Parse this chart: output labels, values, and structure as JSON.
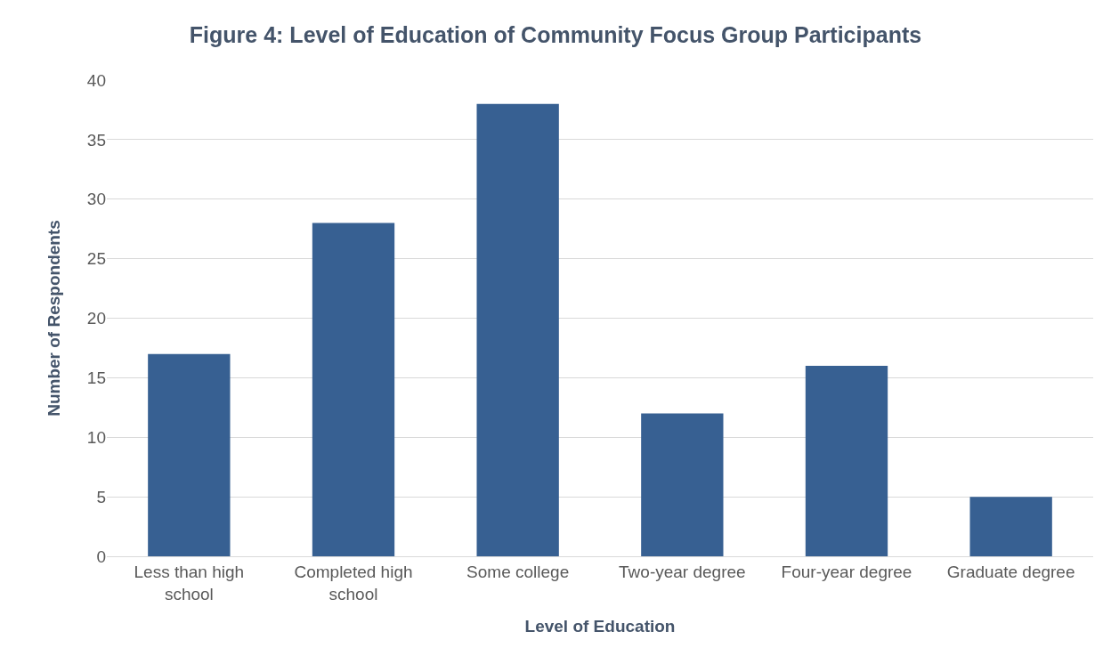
{
  "chart_data": {
    "type": "bar",
    "title": "Figure 4: Level of Education of Community Focus Group Participants",
    "xlabel": "Level of Education",
    "ylabel": "Number of Respondents",
    "categories": [
      "Less than high school",
      "Completed high school",
      "Some college",
      "Two-year degree",
      "Four-year degree",
      "Graduate degree"
    ],
    "values": [
      17,
      28,
      38,
      12,
      16,
      5
    ],
    "color": "#376092",
    "ylim": [
      0,
      40
    ],
    "yticks": [
      0,
      5,
      10,
      15,
      20,
      25,
      30,
      35,
      40
    ],
    "grid": "y",
    "legend": false
  }
}
